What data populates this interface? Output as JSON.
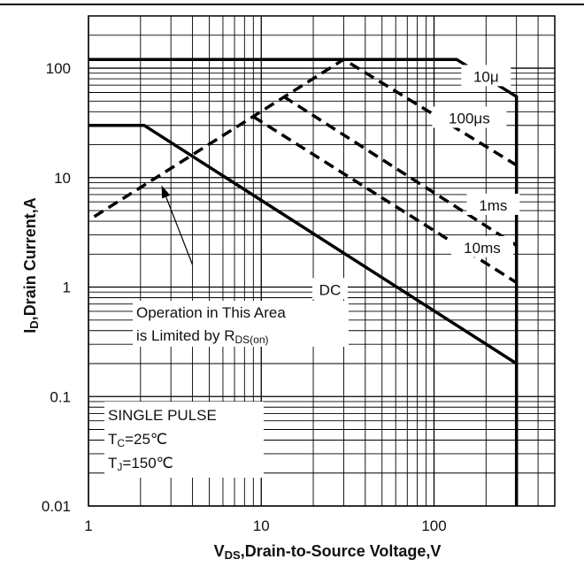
{
  "chart_data": {
    "type": "line",
    "title": "",
    "xlabel": {
      "main": "V",
      "sub": "DS",
      "rest": ",Drain-to-Source Voltage,V"
    },
    "ylabel": {
      "main": "I",
      "sub": "D",
      "rest": ",Drain Current,A"
    },
    "xscale": "log",
    "yscale": "log",
    "xlim": [
      1,
      500
    ],
    "ylim": [
      0.01,
      300
    ],
    "xticks": [
      1,
      10,
      100
    ],
    "xtick_labels": [
      "1",
      "10",
      "100"
    ],
    "yticks": [
      0.01,
      0.1,
      1,
      10,
      100
    ],
    "ytick_labels": [
      "0.01",
      "0.1",
      "1",
      "10",
      "100"
    ],
    "grid": "on",
    "series": [
      {
        "name": "10μ",
        "style": "solid",
        "x": [
          1,
          135,
          300,
          300
        ],
        "y": [
          120,
          120,
          55,
          0.01
        ]
      },
      {
        "name": "100μs",
        "style": "dashed",
        "x": [
          1.08,
          30,
          300
        ],
        "y": [
          4.4,
          120,
          13
        ]
      },
      {
        "name": "1ms",
        "style": "dashed",
        "x": [
          13.5,
          300
        ],
        "y": [
          55,
          2.4
        ]
      },
      {
        "name": "10ms",
        "style": "dashed",
        "x": [
          9,
          300
        ],
        "y": [
          36,
          1.1
        ]
      },
      {
        "name": "DC",
        "style": "solid",
        "x": [
          1,
          2.1,
          300
        ],
        "y": [
          30,
          30,
          0.2
        ]
      }
    ],
    "curve_labels": [
      "10μ",
      "100μs",
      "1ms",
      "10ms",
      "DC"
    ],
    "annotations": {
      "limit_line1": "Operation in This Area",
      "limit_line2_main": "is Limited by R",
      "limit_line2_sub": "DS(on)",
      "pulse_line1": "SINGLE PULSE",
      "pulse_line2_main": "T",
      "pulse_line2_sub": "C",
      "pulse_line2_rest": "=25℃",
      "pulse_line3_main": "T",
      "pulse_line3_sub": "J",
      "pulse_line3_rest": "=150℃"
    }
  }
}
